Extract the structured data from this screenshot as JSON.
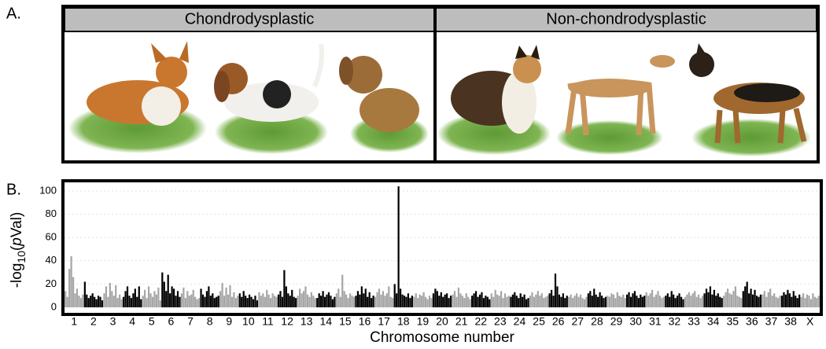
{
  "panel_a": {
    "label": "A.",
    "groups": [
      "Chondrodysplastic",
      "Non-chondrodysplastic"
    ]
  },
  "chart_data": {
    "type": "manhattan",
    "panel_label": "B.",
    "x_label": "Chromosome number",
    "y_label": [
      "-log",
      "10",
      "(",
      "p",
      "Val)"
    ],
    "categories": [
      "1",
      "2",
      "3",
      "4",
      "5",
      "6",
      "7",
      "8",
      "9",
      "10",
      "11",
      "12",
      "13",
      "14",
      "15",
      "16",
      "17",
      "18",
      "19",
      "20",
      "21",
      "22",
      "23",
      "24",
      "25",
      "26",
      "27",
      "28",
      "29",
      "30",
      "31",
      "32",
      "33",
      "34",
      "35",
      "36",
      "37",
      "38",
      "X"
    ],
    "values": [
      [
        14,
        9,
        33,
        44,
        26,
        12,
        16,
        10,
        8,
        11
      ],
      [
        22,
        11,
        8,
        10,
        12,
        9,
        7,
        10,
        9,
        6
      ],
      [
        12,
        18,
        9,
        21,
        14,
        10,
        19,
        8,
        11,
        7
      ],
      [
        9,
        14,
        18,
        10,
        8,
        12,
        16,
        9,
        18,
        7
      ],
      [
        10,
        15,
        8,
        18,
        12,
        9,
        14,
        11,
        17,
        6
      ],
      [
        30,
        22,
        14,
        28,
        12,
        18,
        16,
        10,
        14,
        9
      ],
      [
        12,
        17,
        8,
        14,
        10,
        11,
        15,
        9,
        7,
        8
      ],
      [
        16,
        11,
        9,
        14,
        18,
        10,
        12,
        8,
        9,
        10
      ],
      [
        14,
        21,
        10,
        17,
        11,
        19,
        9,
        13,
        8,
        10
      ],
      [
        12,
        9,
        14,
        10,
        8,
        11,
        9,
        7,
        10,
        6
      ],
      [
        13,
        10,
        12,
        9,
        15,
        11,
        8,
        12,
        10,
        9
      ],
      [
        11,
        14,
        9,
        32,
        18,
        12,
        10,
        15,
        9,
        8
      ],
      [
        10,
        16,
        12,
        14,
        18,
        11,
        9,
        13,
        10,
        8
      ],
      [
        8,
        12,
        10,
        14,
        9,
        11,
        13,
        10,
        7,
        9
      ],
      [
        12,
        16,
        9,
        28,
        14,
        11,
        8,
        12,
        10,
        9
      ],
      [
        10,
        14,
        11,
        18,
        12,
        16,
        9,
        13,
        8,
        10
      ],
      [
        9,
        13,
        16,
        11,
        14,
        10,
        12,
        18,
        9,
        8
      ],
      [
        20,
        12,
        104,
        16,
        11,
        10,
        9,
        12,
        8,
        10
      ],
      [
        9,
        12,
        8,
        11,
        10,
        13,
        9,
        7,
        10,
        8
      ],
      [
        12,
        16,
        14,
        10,
        13,
        9,
        11,
        12,
        8,
        10
      ],
      [
        11,
        14,
        9,
        17,
        12,
        10,
        8,
        12,
        9,
        7
      ],
      [
        10,
        12,
        14,
        9,
        11,
        13,
        8,
        10,
        9,
        7
      ],
      [
        12,
        9,
        15,
        11,
        10,
        14,
        8,
        12,
        9,
        10
      ],
      [
        9,
        11,
        13,
        10,
        8,
        12,
        9,
        11,
        7,
        8
      ],
      [
        10,
        13,
        9,
        11,
        14,
        10,
        12,
        8,
        9,
        10
      ],
      [
        12,
        15,
        10,
        29,
        18,
        11,
        9,
        12,
        8,
        10
      ],
      [
        9,
        11,
        8,
        10,
        12,
        9,
        11,
        8,
        7,
        9
      ],
      [
        12,
        14,
        10,
        16,
        11,
        9,
        13,
        10,
        8,
        9
      ],
      [
        10,
        9,
        12,
        11,
        8,
        13,
        10,
        9,
        11,
        8
      ],
      [
        11,
        13,
        9,
        12,
        14,
        10,
        8,
        11,
        9,
        10
      ],
      [
        13,
        10,
        12,
        15,
        9,
        11,
        14,
        10,
        8,
        9
      ],
      [
        10,
        12,
        9,
        14,
        11,
        8,
        10,
        12,
        9,
        7
      ],
      [
        9,
        11,
        13,
        10,
        12,
        14,
        9,
        11,
        8,
        10
      ],
      [
        12,
        16,
        13,
        18,
        11,
        15,
        10,
        12,
        9,
        8
      ],
      [
        10,
        13,
        16,
        12,
        11,
        14,
        18,
        10,
        9,
        8
      ],
      [
        14,
        18,
        22,
        12,
        16,
        11,
        15,
        10,
        9,
        11
      ],
      [
        11,
        14,
        9,
        13,
        16,
        10,
        12,
        9,
        8,
        10
      ],
      [
        10,
        13,
        11,
        15,
        12,
        9,
        14,
        10,
        8,
        11
      ],
      [
        9,
        12,
        8,
        11,
        10,
        7,
        12,
        9,
        8,
        10
      ]
    ],
    "colors": [
      "#a6a6a6",
      "#000000"
    ],
    "ylim": [
      0,
      105
    ],
    "yticks": [
      0,
      20,
      40,
      60,
      80,
      100
    ],
    "grid": true
  }
}
